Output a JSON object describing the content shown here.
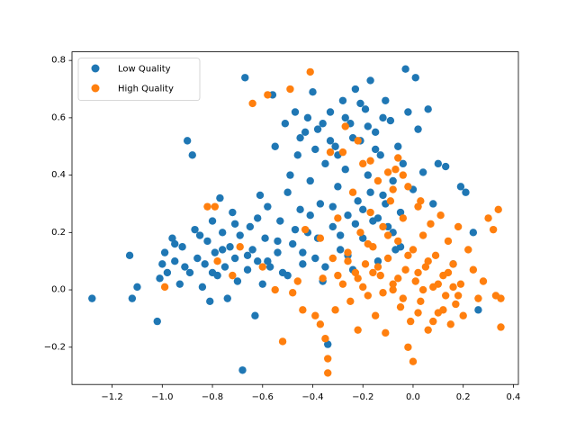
{
  "chart_data": {
    "type": "scatter",
    "title": "",
    "xlabel": "",
    "ylabel": "",
    "xlim": [
      -1.36,
      0.42
    ],
    "ylim": [
      -0.33,
      0.83
    ],
    "xticks": [
      -1.2,
      -1.0,
      -0.8,
      -0.6,
      -0.4,
      -0.2,
      0.0,
      0.2,
      0.4
    ],
    "yticks": [
      -0.2,
      0.0,
      0.2,
      0.4,
      0.6,
      0.8
    ],
    "xtick_labels": [
      "−1.2",
      "−1.0",
      "−0.8",
      "−0.6",
      "−0.4",
      "−0.2",
      "0.0",
      "0.2",
      "0.4"
    ],
    "ytick_labels": [
      "−0.2",
      "0.0",
      "0.2",
      "0.4",
      "0.6",
      "0.8"
    ],
    "grid": false,
    "legend_position": "top-left",
    "series": [
      {
        "name": "Low Quality",
        "color": "#1f77b4",
        "points": [
          [
            -1.28,
            -0.03
          ],
          [
            -1.13,
            0.12
          ],
          [
            -1.12,
            -0.03
          ],
          [
            -1.1,
            0.01
          ],
          [
            -1.02,
            -0.11
          ],
          [
            -1.01,
            0.04
          ],
          [
            -1.0,
            0.09
          ],
          [
            -0.99,
            0.13
          ],
          [
            -0.98,
            0.06
          ],
          [
            -0.96,
            0.18
          ],
          [
            -0.95,
            0.1
          ],
          [
            -0.93,
            0.02
          ],
          [
            -0.92,
            0.15
          ],
          [
            -0.9,
            0.52
          ],
          [
            -0.89,
            0.06
          ],
          [
            -0.88,
            0.47
          ],
          [
            -0.87,
            0.21
          ],
          [
            -0.86,
            0.11
          ],
          [
            -0.84,
            0.01
          ],
          [
            -0.83,
            0.09
          ],
          [
            -0.82,
            0.17
          ],
          [
            -0.81,
            -0.04
          ],
          [
            -0.8,
            0.24
          ],
          [
            -0.79,
            0.13
          ],
          [
            -0.78,
            0.05
          ],
          [
            -0.77,
            0.32
          ],
          [
            -0.76,
            0.2
          ],
          [
            -0.75,
            0.08
          ],
          [
            -0.74,
            -0.03
          ],
          [
            -0.73,
            0.15
          ],
          [
            -0.72,
            0.27
          ],
          [
            -0.71,
            0.11
          ],
          [
            -0.7,
            0.03
          ],
          [
            -0.69,
            0.19
          ],
          [
            -0.68,
            -0.28
          ],
          [
            -0.67,
            0.74
          ],
          [
            -0.66,
            0.07
          ],
          [
            -0.65,
            0.22
          ],
          [
            -0.64,
            0.14
          ],
          [
            -0.63,
            -0.09
          ],
          [
            -0.62,
            0.1
          ],
          [
            -0.61,
            0.33
          ],
          [
            -0.6,
            0.02
          ],
          [
            -0.59,
            0.18
          ],
          [
            -0.58,
            0.29
          ],
          [
            -0.57,
            0.08
          ],
          [
            -0.56,
            0.68
          ],
          [
            -0.55,
            0.5
          ],
          [
            -0.54,
            0.13
          ],
          [
            -0.53,
            0.24
          ],
          [
            -0.52,
            0.06
          ],
          [
            -0.51,
            0.58
          ],
          [
            -0.5,
            0.34
          ],
          [
            -0.49,
            0.4
          ],
          [
            -0.48,
            0.16
          ],
          [
            -0.47,
            0.62
          ],
          [
            -0.46,
            0.47
          ],
          [
            -0.45,
            0.28
          ],
          [
            -0.44,
            0.09
          ],
          [
            -0.43,
            0.55
          ],
          [
            -0.42,
            0.2
          ],
          [
            -0.41,
            0.38
          ],
          [
            -0.4,
            0.69
          ],
          [
            -0.39,
            0.11
          ],
          [
            -0.38,
            0.56
          ],
          [
            -0.37,
            0.3
          ],
          [
            -0.36,
            0.03
          ],
          [
            -0.35,
            0.44
          ],
          [
            -0.34,
            -0.19
          ],
          [
            -0.33,
            0.62
          ],
          [
            -0.32,
            0.22
          ],
          [
            -0.31,
            0.5
          ],
          [
            -0.3,
            0.36
          ],
          [
            -0.29,
            0.14
          ],
          [
            -0.28,
            0.66
          ],
          [
            -0.27,
            0.42
          ],
          [
            -0.26,
            0.26
          ],
          [
            -0.25,
            0.58
          ],
          [
            -0.24,
            0.07
          ],
          [
            -0.23,
            0.7
          ],
          [
            -0.22,
            0.31
          ],
          [
            -0.21,
            0.52
          ],
          [
            -0.2,
            0.18
          ],
          [
            -0.19,
            0.63
          ],
          [
            -0.18,
            0.4
          ],
          [
            -0.17,
            0.73
          ],
          [
            -0.16,
            0.24
          ],
          [
            -0.15,
            0.55
          ],
          [
            -0.14,
            0.1
          ],
          [
            -0.13,
            0.47
          ],
          [
            -0.12,
            0.33
          ],
          [
            -0.11,
            0.66
          ],
          [
            -0.1,
            0.22
          ],
          [
            -0.09,
            0.59
          ],
          [
            -0.08,
            0.38
          ],
          [
            -0.07,
            0.14
          ],
          [
            -0.06,
            0.5
          ],
          [
            -0.05,
            0.27
          ],
          [
            -0.04,
            0.44
          ],
          [
            -0.03,
            0.77
          ],
          [
            -0.02,
            0.62
          ],
          [
            0.0,
            0.35
          ],
          [
            0.01,
            0.74
          ],
          [
            0.02,
            0.56
          ],
          [
            0.04,
            0.41
          ],
          [
            0.06,
            0.63
          ],
          [
            0.08,
            0.3
          ],
          [
            0.1,
            0.44
          ],
          [
            0.13,
            0.43
          ],
          [
            0.16,
            0.09
          ],
          [
            0.19,
            0.36
          ],
          [
            0.21,
            0.34
          ],
          [
            0.24,
            0.2
          ],
          [
            0.26,
            -0.07
          ],
          [
            -0.95,
            0.16
          ],
          [
            -0.91,
            0.08
          ],
          [
            -0.85,
            0.19
          ],
          [
            -0.8,
            0.06
          ],
          [
            -0.76,
            0.14
          ],
          [
            -0.71,
            0.23
          ],
          [
            -0.66,
            0.12
          ],
          [
            -0.62,
            0.25
          ],
          [
            -0.58,
            0.1
          ],
          [
            -0.54,
            0.17
          ],
          [
            -0.5,
            0.05
          ],
          [
            -0.47,
            0.21
          ],
          [
            -0.44,
            0.13
          ],
          [
            -0.41,
            0.26
          ],
          [
            -0.38,
            0.18
          ],
          [
            -0.35,
            0.08
          ],
          [
            -0.32,
            0.29
          ],
          [
            -0.29,
            0.19
          ],
          [
            -0.26,
            0.12
          ],
          [
            -0.23,
            0.23
          ],
          [
            -0.2,
            0.28
          ],
          [
            -0.17,
            0.34
          ],
          [
            -0.14,
            0.25
          ],
          [
            -0.11,
            0.3
          ],
          [
            -0.08,
            0.2
          ],
          [
            -0.05,
            0.15
          ],
          [
            -0.33,
            0.52
          ],
          [
            -0.3,
            0.47
          ],
          [
            -0.27,
            0.6
          ],
          [
            -0.24,
            0.53
          ],
          [
            -0.21,
            0.65
          ],
          [
            -0.18,
            0.57
          ],
          [
            -0.15,
            0.49
          ],
          [
            -0.12,
            0.6
          ],
          [
            -0.36,
            0.58
          ],
          [
            -0.39,
            0.49
          ],
          [
            -0.42,
            0.6
          ],
          [
            -0.45,
            0.53
          ]
        ]
      },
      {
        "name": "High Quality",
        "color": "#ff7f0e",
        "points": [
          [
            -0.99,
            0.01
          ],
          [
            -0.82,
            0.29
          ],
          [
            -0.79,
            0.29
          ],
          [
            -0.78,
            0.1
          ],
          [
            -0.72,
            0.05
          ],
          [
            -0.69,
            0.15
          ],
          [
            -0.64,
            0.65
          ],
          [
            -0.6,
            0.08
          ],
          [
            -0.58,
            0.68
          ],
          [
            -0.55,
            0.0
          ],
          [
            -0.52,
            -0.18
          ],
          [
            -0.49,
            0.7
          ],
          [
            -0.46,
            0.03
          ],
          [
            -0.43,
            0.21
          ],
          [
            -0.41,
            0.76
          ],
          [
            -0.39,
            -0.09
          ],
          [
            -0.37,
            0.18
          ],
          [
            -0.36,
            0.04
          ],
          [
            -0.35,
            -0.17
          ],
          [
            -0.34,
            -0.24
          ],
          [
            -0.33,
            0.48
          ],
          [
            -0.32,
            0.11
          ],
          [
            -0.31,
            -0.07
          ],
          [
            -0.3,
            0.25
          ],
          [
            -0.28,
            0.02
          ],
          [
            -0.27,
            0.57
          ],
          [
            -0.26,
            0.13
          ],
          [
            -0.25,
            -0.04
          ],
          [
            -0.24,
            0.34
          ],
          [
            -0.23,
            0.06
          ],
          [
            -0.22,
            -0.14
          ],
          [
            -0.21,
            0.2
          ],
          [
            -0.2,
            0.44
          ],
          [
            -0.19,
            0.09
          ],
          [
            -0.18,
            -0.02
          ],
          [
            -0.17,
            0.27
          ],
          [
            -0.16,
            0.15
          ],
          [
            -0.15,
            -0.09
          ],
          [
            -0.14,
            0.38
          ],
          [
            -0.13,
            0.05
          ],
          [
            -0.12,
            0.22
          ],
          [
            -0.11,
            -0.15
          ],
          [
            -0.1,
            0.11
          ],
          [
            -0.09,
            0.31
          ],
          [
            -0.08,
            0.0
          ],
          [
            -0.07,
            0.42
          ],
          [
            -0.06,
            0.17
          ],
          [
            -0.05,
            -0.06
          ],
          [
            -0.04,
            0.25
          ],
          [
            -0.03,
            0.07
          ],
          [
            -0.02,
            0.36
          ],
          [
            -0.01,
            -0.11
          ],
          [
            0.0,
            0.14
          ],
          [
            0.01,
            0.03
          ],
          [
            0.02,
            0.29
          ],
          [
            0.03,
            -0.04
          ],
          [
            0.04,
            0.19
          ],
          [
            0.05,
            0.08
          ],
          [
            0.06,
            -0.14
          ],
          [
            0.07,
            0.23
          ],
          [
            0.08,
            0.01
          ],
          [
            0.09,
            0.12
          ],
          [
            0.1,
            -0.08
          ],
          [
            0.11,
            0.26
          ],
          [
            0.12,
            0.05
          ],
          [
            0.13,
            -0.02
          ],
          [
            0.14,
            0.17
          ],
          [
            0.15,
            -0.12
          ],
          [
            0.16,
            0.09
          ],
          [
            0.17,
            -0.05
          ],
          [
            0.18,
            0.22
          ],
          [
            0.19,
            0.02
          ],
          [
            0.2,
            -0.09
          ],
          [
            0.22,
            0.14
          ],
          [
            0.24,
            0.07
          ],
          [
            0.26,
            -0.03
          ],
          [
            0.28,
            0.03
          ],
          [
            0.3,
            0.25
          ],
          [
            0.32,
            0.21
          ],
          [
            0.33,
            -0.02
          ],
          [
            0.34,
            0.28
          ],
          [
            0.35,
            -0.13
          ],
          [
            0.35,
            -0.03
          ],
          [
            0.0,
            -0.25
          ],
          [
            -0.02,
            -0.2
          ],
          [
            -0.34,
            -0.29
          ],
          [
            -0.37,
            -0.12
          ],
          [
            -0.44,
            -0.07
          ],
          [
            -0.48,
            -0.01
          ],
          [
            -0.3,
            0.05
          ],
          [
            -0.26,
            0.1
          ],
          [
            -0.22,
            0.04
          ],
          [
            -0.18,
            0.16
          ],
          [
            -0.14,
            0.08
          ],
          [
            -0.1,
            0.19
          ],
          [
            -0.06,
            0.04
          ],
          [
            -0.02,
            0.12
          ],
          [
            0.02,
            0.06
          ],
          [
            0.06,
            0.1
          ],
          [
            0.1,
            0.02
          ],
          [
            0.14,
            0.06
          ],
          [
            0.18,
            -0.02
          ],
          [
            0.02,
            -0.08
          ],
          [
            -0.04,
            -0.03
          ],
          [
            0.08,
            -0.11
          ],
          [
            0.12,
            -0.07
          ],
          [
            -0.08,
            0.02
          ],
          [
            -0.12,
            -0.01
          ],
          [
            0.16,
            0.01
          ],
          [
            0.04,
            0.0
          ],
          [
            -0.16,
            0.06
          ],
          [
            -0.2,
            0.01
          ],
          [
            -0.1,
            0.41
          ],
          [
            -0.08,
            0.35
          ],
          [
            -0.06,
            0.46
          ],
          [
            -0.04,
            0.4
          ],
          [
            -0.28,
            0.48
          ],
          [
            -0.22,
            0.52
          ],
          [
            -0.17,
            0.45
          ],
          [
            0.03,
            0.31
          ]
        ]
      }
    ]
  }
}
